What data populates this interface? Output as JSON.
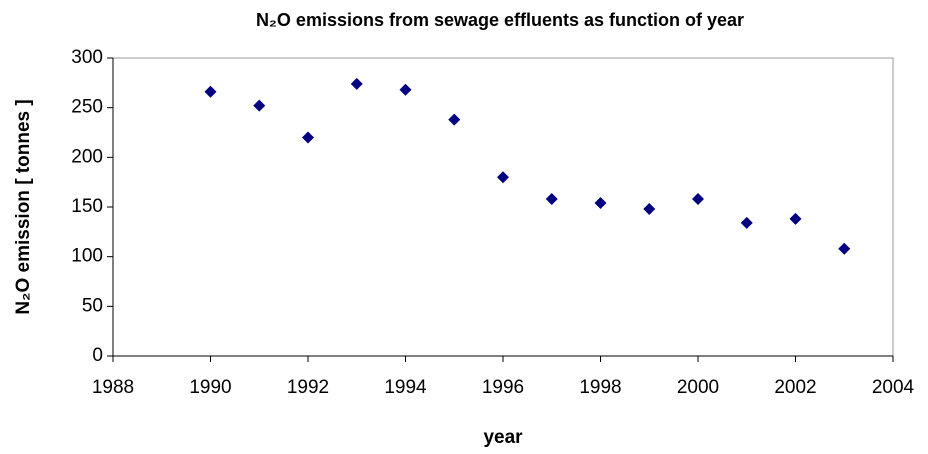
{
  "chart_data": {
    "type": "scatter",
    "title": "N₂O emissions from sewage effluents as function of year",
    "x_label": "year",
    "y_label": "N₂O emission [ tonnes ]",
    "series": [
      {
        "name": "N₂O emission",
        "color": "#000080",
        "x": [
          1990,
          1991,
          1992,
          1993,
          1994,
          1995,
          1996,
          1997,
          1998,
          1999,
          2000,
          2001,
          2002,
          2003
        ],
        "values": [
          266,
          252,
          220,
          274,
          268,
          238,
          180,
          158,
          154,
          148,
          158,
          134,
          138,
          108
        ]
      }
    ],
    "xlim": [
      1988,
      2004
    ],
    "xticks": [
      1988,
      1990,
      1992,
      1994,
      1996,
      1998,
      2000,
      2002,
      2004
    ],
    "ylim": [
      0,
      300
    ],
    "yticks": [
      0,
      50,
      100,
      150,
      200,
      250,
      300
    ],
    "grid": false
  }
}
